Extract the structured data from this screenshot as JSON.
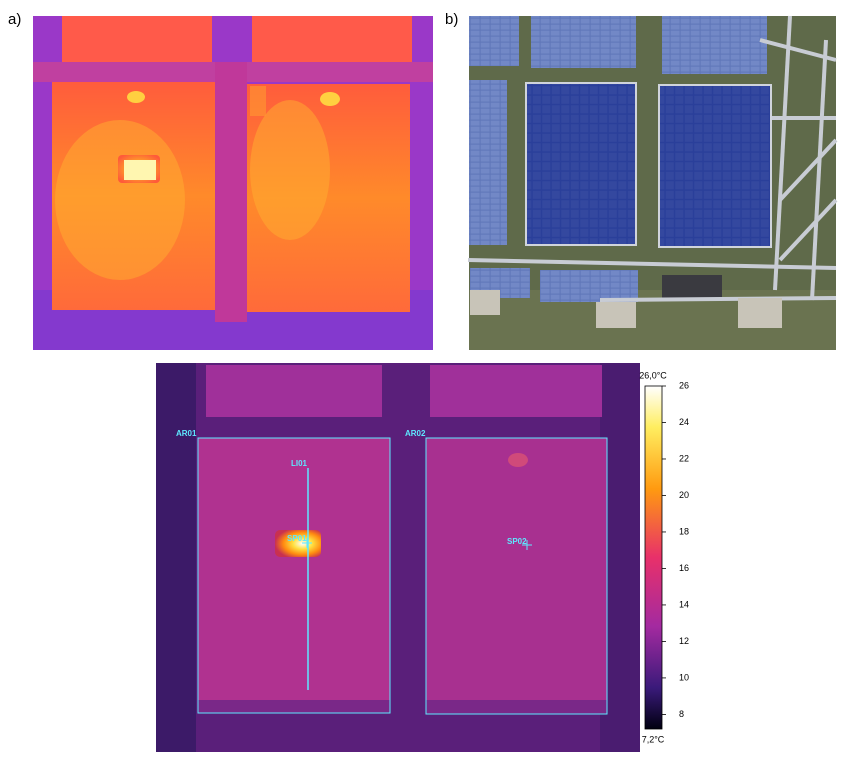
{
  "panels": {
    "a": {
      "label": "a)"
    },
    "b": {
      "label": "b)"
    }
  },
  "thermal": {
    "areas": [
      "AR01",
      "AR02"
    ],
    "line": "LI01",
    "spots": [
      "SP01",
      "SP02"
    ],
    "colorbar": {
      "max_label": "26,0°C",
      "min_label": "7,2°C",
      "lim": [
        7.2,
        26
      ],
      "ticks": [
        8,
        10,
        12,
        14,
        16,
        18,
        20,
        22,
        24,
        26
      ]
    }
  }
}
